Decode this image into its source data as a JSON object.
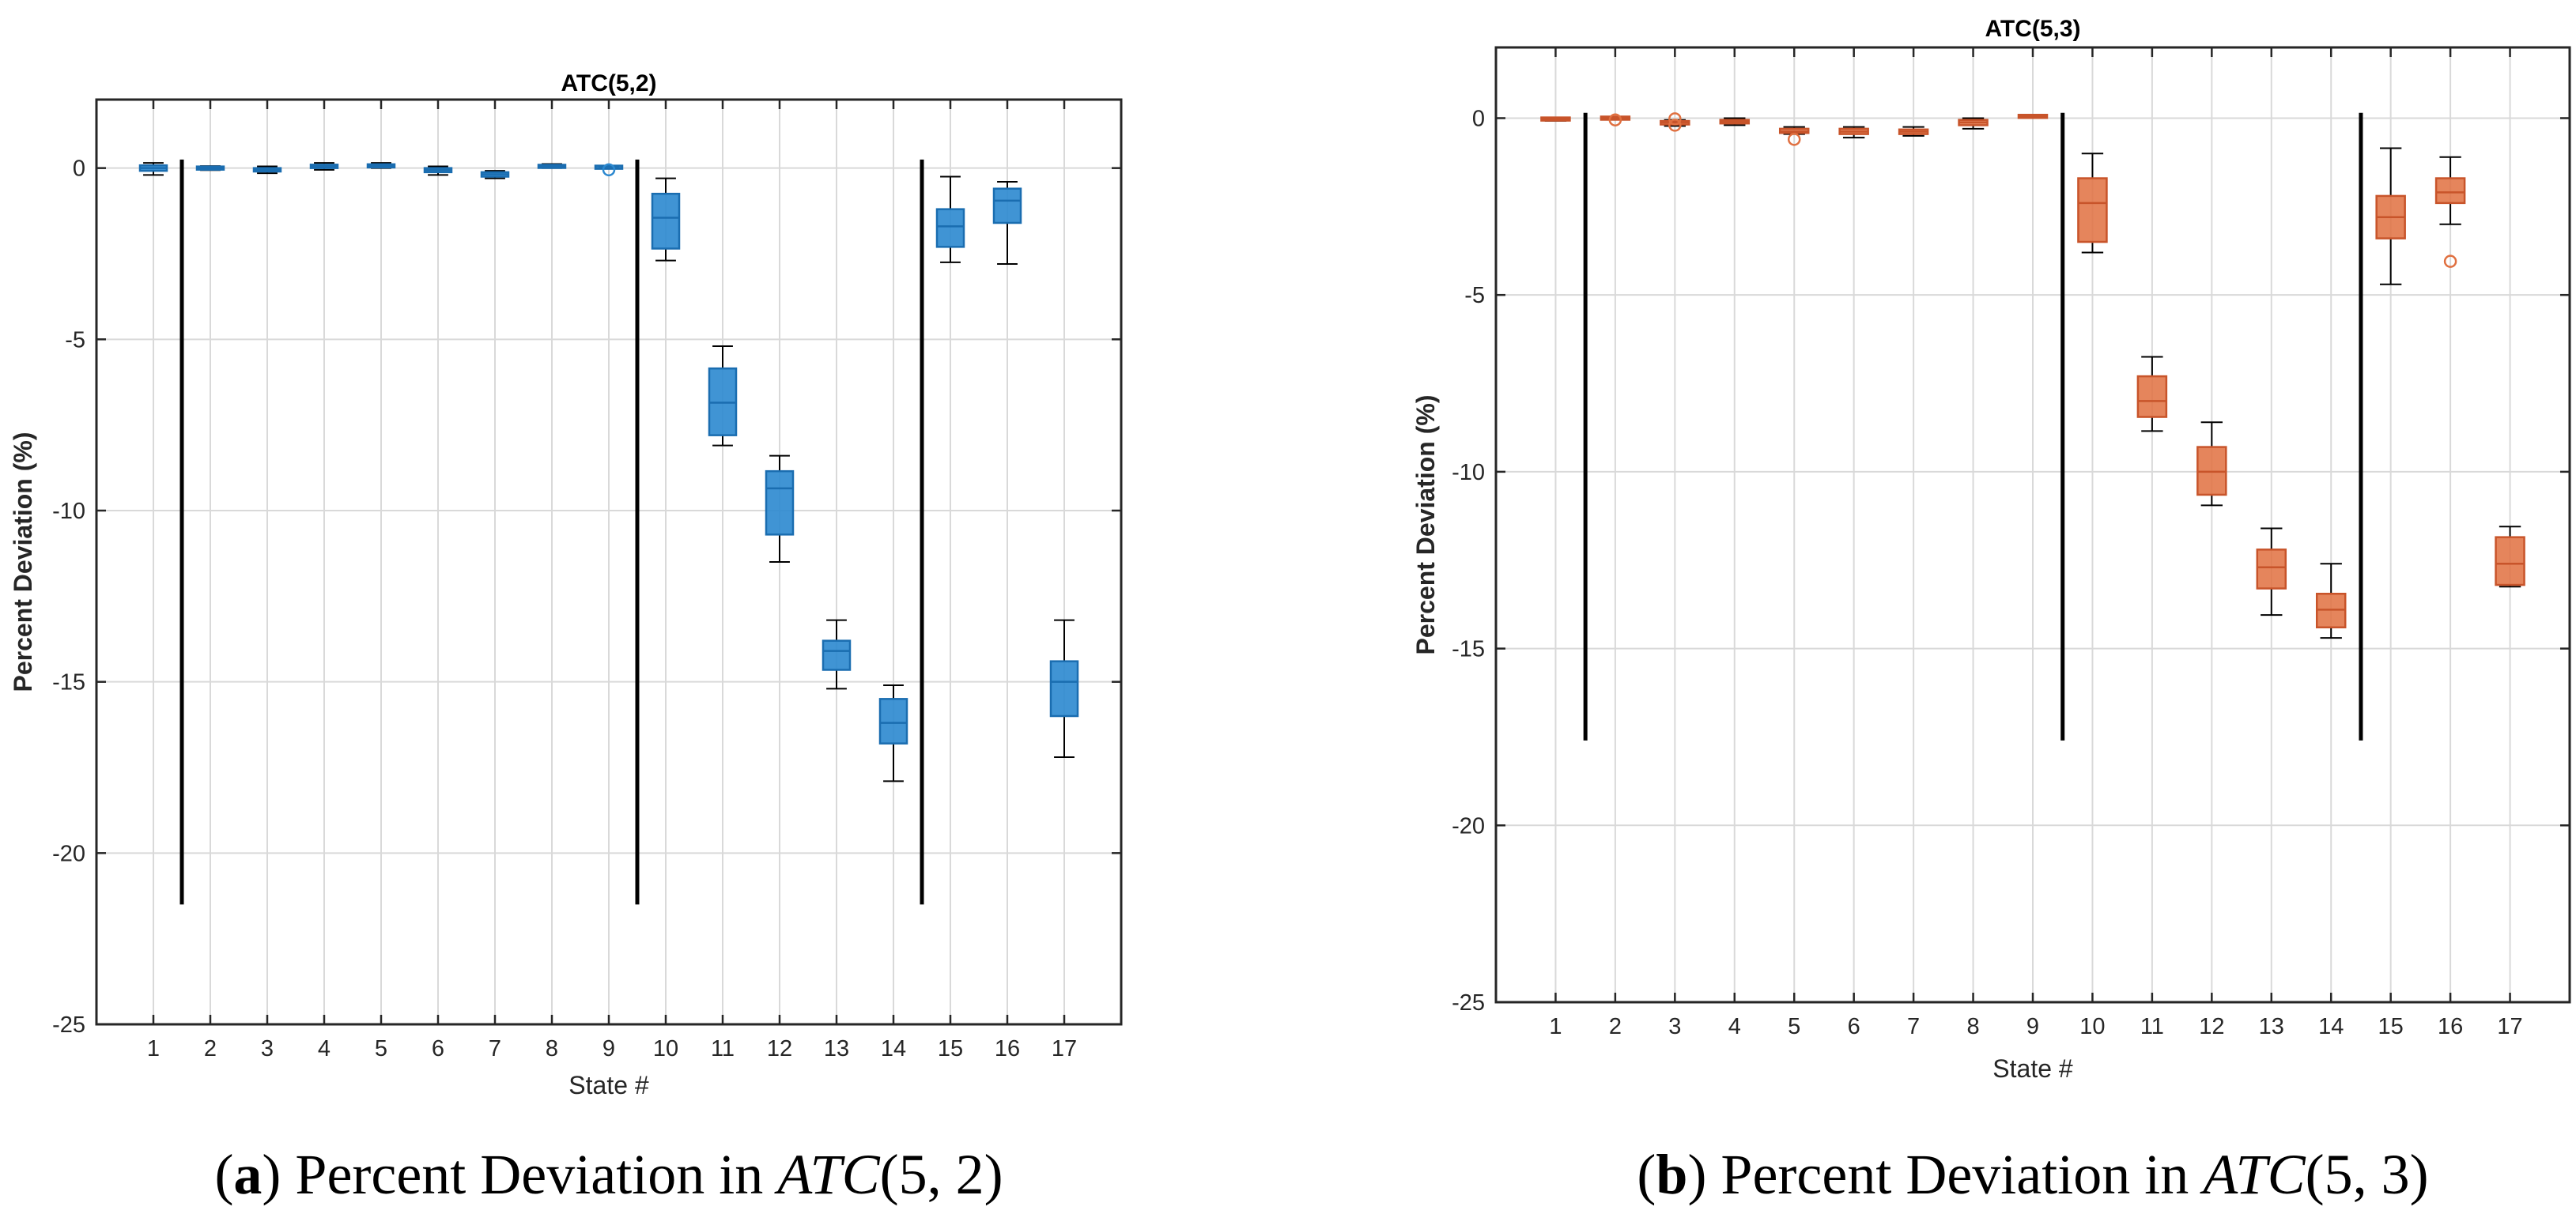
{
  "chart_data": [
    {
      "type": "box",
      "title": "ATC(5,2)",
      "xlabel": "State #",
      "ylabel": "Percent Deviation (%)",
      "ylim": [
        -25,
        2
      ],
      "yticks": [
        0,
        -5,
        -10,
        -15,
        -20,
        -25
      ],
      "ytick_labels": [
        "0",
        "-5",
        "-10",
        "-15",
        "-20",
        "-25"
      ],
      "categories": [
        "1",
        "2",
        "3",
        "4",
        "5",
        "6",
        "7",
        "8",
        "9",
        "10",
        "11",
        "12",
        "13",
        "14",
        "15",
        "16",
        "17"
      ],
      "grid": true,
      "color": "#2b88cf",
      "separators": [
        {
          "between": [
            1,
            2
          ],
          "from": 0.25,
          "to": -21.5
        },
        {
          "between": [
            9,
            10
          ],
          "from": 0.25,
          "to": -21.5
        },
        {
          "between": [
            14,
            15
          ],
          "from": 0.25,
          "to": -21.5
        }
      ],
      "boxes": [
        {
          "state": 1,
          "min": -0.2,
          "q1": -0.08,
          "median": 0.0,
          "q3": 0.08,
          "max": 0.15,
          "outliers": []
        },
        {
          "state": 2,
          "min": -0.06,
          "q1": -0.03,
          "median": 0.0,
          "q3": 0.03,
          "max": 0.06,
          "outliers": []
        },
        {
          "state": 3,
          "min": -0.15,
          "q1": -0.1,
          "median": -0.05,
          "q3": 0.0,
          "max": 0.05,
          "outliers": []
        },
        {
          "state": 4,
          "min": -0.05,
          "q1": 0.0,
          "median": 0.05,
          "q3": 0.1,
          "max": 0.15,
          "outliers": []
        },
        {
          "state": 5,
          "min": 0.0,
          "q1": 0.03,
          "median": 0.06,
          "q3": 0.1,
          "max": 0.15,
          "outliers": []
        },
        {
          "state": 6,
          "min": -0.2,
          "q1": -0.12,
          "median": -0.06,
          "q3": 0.0,
          "max": 0.05,
          "outliers": []
        },
        {
          "state": 7,
          "min": -0.3,
          "q1": -0.25,
          "median": -0.18,
          "q3": -0.12,
          "max": -0.08,
          "outliers": []
        },
        {
          "state": 8,
          "min": 0.0,
          "q1": 0.02,
          "median": 0.05,
          "q3": 0.08,
          "max": 0.12,
          "outliers": []
        },
        {
          "state": 9,
          "min": 0.0,
          "q1": 0.0,
          "median": 0.0,
          "q3": 0.05,
          "max": 0.05,
          "outliers": [
            -0.05
          ]
        },
        {
          "state": 10,
          "min": -2.7,
          "q1": -2.35,
          "median": -1.45,
          "q3": -0.75,
          "max": -0.3,
          "outliers": []
        },
        {
          "state": 11,
          "min": -8.1,
          "q1": -7.8,
          "median": -6.85,
          "q3": -5.85,
          "max": -5.2,
          "outliers": []
        },
        {
          "state": 12,
          "min": -11.5,
          "q1": -10.7,
          "median": -9.35,
          "q3": -8.85,
          "max": -8.4,
          "outliers": []
        },
        {
          "state": 13,
          "min": -15.2,
          "q1": -14.65,
          "median": -14.1,
          "q3": -13.8,
          "max": -13.2,
          "outliers": []
        },
        {
          "state": 14,
          "min": -17.9,
          "q1": -16.8,
          "median": -16.2,
          "q3": -15.5,
          "max": -15.1,
          "outliers": []
        },
        {
          "state": 15,
          "min": -2.75,
          "q1": -2.3,
          "median": -1.7,
          "q3": -1.2,
          "max": -0.25,
          "outliers": []
        },
        {
          "state": 16,
          "min": -2.8,
          "q1": -1.6,
          "median": -0.95,
          "q3": -0.6,
          "max": -0.4,
          "outliers": []
        },
        {
          "state": 17,
          "min": -17.2,
          "q1": -16.0,
          "median": -15.0,
          "q3": -14.4,
          "max": -13.2,
          "outliers": []
        }
      ]
    },
    {
      "type": "box",
      "title": "ATC(5,3)",
      "xlabel": "State #",
      "ylabel": "Percent Deviation (%)",
      "ylim": [
        -25,
        2
      ],
      "yticks": [
        0,
        -5,
        -10,
        -15,
        -20,
        -25
      ],
      "ytick_labels": [
        "0",
        "-5",
        "-10",
        "-15",
        "-20",
        "-25"
      ],
      "categories": [
        "1",
        "2",
        "3",
        "4",
        "5",
        "6",
        "7",
        "8",
        "9",
        "10",
        "11",
        "12",
        "13",
        "14",
        "15",
        "16",
        "17"
      ],
      "grid": true,
      "color": "#e07040",
      "separators": [
        {
          "between": [
            1,
            2
          ],
          "from": 0.15,
          "to": -17.6
        },
        {
          "between": [
            9,
            10
          ],
          "from": 0.15,
          "to": -17.6
        },
        {
          "between": [
            14,
            15
          ],
          "from": 0.15,
          "to": -17.6
        }
      ],
      "boxes": [
        {
          "state": 1,
          "min": -0.08,
          "q1": -0.05,
          "median": -0.02,
          "q3": 0.0,
          "max": 0.02,
          "outliers": []
        },
        {
          "state": 2,
          "min": -0.03,
          "q1": -0.01,
          "median": 0.0,
          "q3": 0.01,
          "max": 0.03,
          "outliers": [
            -0.05
          ]
        },
        {
          "state": 3,
          "min": -0.22,
          "q1": -0.18,
          "median": -0.12,
          "q3": -0.08,
          "max": -0.05,
          "outliers": [
            -0.02,
            -0.2
          ]
        },
        {
          "state": 4,
          "min": -0.2,
          "q1": -0.15,
          "median": -0.1,
          "q3": -0.05,
          "max": 0.0,
          "outliers": []
        },
        {
          "state": 5,
          "min": -0.45,
          "q1": -0.42,
          "median": -0.38,
          "q3": -0.3,
          "max": -0.25,
          "outliers": [
            -0.6
          ]
        },
        {
          "state": 6,
          "min": -0.55,
          "q1": -0.45,
          "median": -0.38,
          "q3": -0.3,
          "max": -0.25,
          "outliers": []
        },
        {
          "state": 7,
          "min": -0.5,
          "q1": -0.45,
          "median": -0.38,
          "q3": -0.32,
          "max": -0.25,
          "outliers": []
        },
        {
          "state": 8,
          "min": -0.3,
          "q1": -0.2,
          "median": -0.12,
          "q3": -0.05,
          "max": 0.0,
          "outliers": []
        },
        {
          "state": 9,
          "min": 0.0,
          "q1": 0.02,
          "median": 0.05,
          "q3": 0.08,
          "max": 0.1,
          "outliers": []
        },
        {
          "state": 10,
          "min": -3.8,
          "q1": -3.5,
          "median": -2.4,
          "q3": -1.7,
          "max": -1.0,
          "outliers": []
        },
        {
          "state": 11,
          "min": -8.85,
          "q1": -8.45,
          "median": -8.0,
          "q3": -7.3,
          "max": -6.75,
          "outliers": []
        },
        {
          "state": 12,
          "min": -10.95,
          "q1": -10.65,
          "median": -10.0,
          "q3": -9.3,
          "max": -8.6,
          "outliers": []
        },
        {
          "state": 13,
          "min": -14.05,
          "q1": -13.3,
          "median": -12.7,
          "q3": -12.2,
          "max": -11.6,
          "outliers": []
        },
        {
          "state": 14,
          "min": -14.7,
          "q1": -14.4,
          "median": -13.9,
          "q3": -13.45,
          "max": -12.6,
          "outliers": []
        },
        {
          "state": 15,
          "min": -4.7,
          "q1": -3.4,
          "median": -2.8,
          "q3": -2.2,
          "max": -0.85,
          "outliers": []
        },
        {
          "state": 16,
          "min": -3.0,
          "q1": -2.4,
          "median": -2.1,
          "q3": -1.7,
          "max": -1.1,
          "outliers": [
            -4.05
          ]
        },
        {
          "state": 17,
          "min": -13.25,
          "q1": -13.2,
          "median": -12.6,
          "q3": -11.85,
          "max": -11.55,
          "outliers": []
        }
      ]
    }
  ],
  "captions": [
    {
      "label": "a",
      "text": " Percent Deviation in ",
      "math_name": "ATC",
      "math_args": "(5, 2)"
    },
    {
      "label": "b",
      "text": " Percent Deviation in ",
      "math_name": "ATC",
      "math_args": "(5, 3)"
    }
  ]
}
